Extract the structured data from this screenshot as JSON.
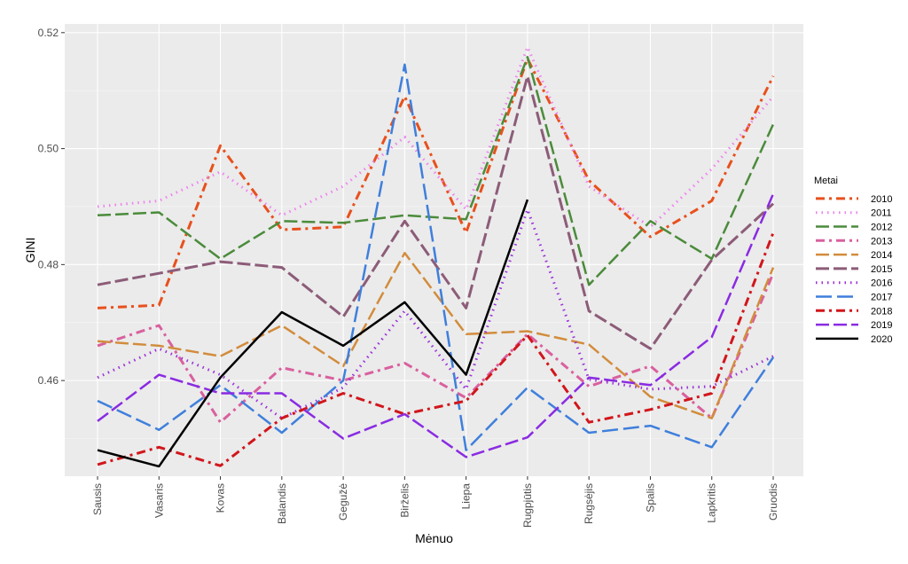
{
  "chart_data": {
    "type": "line",
    "title": "",
    "xlabel": "Mėnuo",
    "ylabel": "GINI",
    "categories": [
      "Sausis",
      "Vasaris",
      "Kovas",
      "Balandis",
      "Gegužė",
      "Birželis",
      "Liepa",
      "Rugpjūtis",
      "Rugsėjis",
      "Spalis",
      "Lapkritis",
      "Gruodis"
    ],
    "ylim": [
      0.4435,
      0.5215
    ],
    "yticks": [
      0.46,
      0.48,
      0.5,
      0.52
    ],
    "ytick_labels": [
      "0.46",
      "0.48",
      "0.50",
      "0.52"
    ],
    "grid": true,
    "legend_title": "Metai",
    "legend_position": "right",
    "series": [
      {
        "name": "2010",
        "color": "#e8501c",
        "dash": "10,5,3,5",
        "width": 3,
        "values": [
          0.4725,
          0.473,
          0.5005,
          0.486,
          0.4865,
          0.509,
          0.4855,
          0.5155,
          0.4945,
          0.4848,
          0.491,
          0.5125
        ]
      },
      {
        "name": "2011",
        "color": "#ee82ee",
        "dash": "1.5,5",
        "width": 3,
        "values": [
          0.49,
          0.491,
          0.496,
          0.4885,
          0.4935,
          0.502,
          0.4895,
          0.5175,
          0.4935,
          0.4865,
          0.4965,
          0.509
        ]
      },
      {
        "name": "2012",
        "color": "#4b8b3b",
        "dash": "15,5",
        "width": 2.5,
        "values": [
          0.4885,
          0.489,
          0.481,
          0.4875,
          0.4872,
          0.4885,
          0.4878,
          0.5158,
          0.4765,
          0.4875,
          0.481,
          0.5042
        ]
      },
      {
        "name": "2013",
        "color": "#d9609e",
        "dash": "10,5,3,5",
        "width": 3,
        "values": [
          0.466,
          0.4695,
          0.4528,
          0.4622,
          0.46,
          0.463,
          0.457,
          0.468,
          0.459,
          0.4625,
          0.4535,
          0.4785
        ]
      },
      {
        "name": "2014",
        "color": "#d28c3c",
        "dash": "15,5",
        "width": 2.5,
        "values": [
          0.4668,
          0.466,
          0.4642,
          0.4695,
          0.4625,
          0.482,
          0.468,
          0.4685,
          0.4662,
          0.4572,
          0.4535,
          0.4795
        ]
      },
      {
        "name": "2015",
        "color": "#8c5c78",
        "dash": "15,5",
        "width": 3,
        "values": [
          0.4765,
          0.4785,
          0.4805,
          0.4795,
          0.471,
          0.4875,
          0.4725,
          0.5125,
          0.472,
          0.4655,
          0.4808,
          0.4905
        ]
      },
      {
        "name": "2016",
        "color": "#9b30d9",
        "dash": "1.5,5",
        "width": 3,
        "values": [
          0.4605,
          0.4655,
          0.461,
          0.4535,
          0.4588,
          0.472,
          0.4585,
          0.4895,
          0.4602,
          0.4585,
          0.459,
          0.4642
        ]
      },
      {
        "name": "2017",
        "color": "#3f7fdc",
        "dash": "18,6",
        "width": 2.5,
        "values": [
          0.4565,
          0.4515,
          0.4592,
          0.451,
          0.46,
          0.5145,
          0.448,
          0.4588,
          0.451,
          0.4522,
          0.4485,
          0.464
        ]
      },
      {
        "name": "2018",
        "color": "#d1161b",
        "dash": "10,5,3,5",
        "width": 3,
        "values": [
          0.4455,
          0.4485,
          0.4453,
          0.4535,
          0.4578,
          0.4542,
          0.4565,
          0.4678,
          0.4528,
          0.455,
          0.4578,
          0.4855
        ]
      },
      {
        "name": "2019",
        "color": "#8a2be2",
        "dash": "15,5",
        "width": 2.5,
        "values": [
          0.453,
          0.461,
          0.4578,
          0.4578,
          0.45,
          0.4542,
          0.4468,
          0.4502,
          0.4605,
          0.4592,
          0.4675,
          0.4922
        ]
      },
      {
        "name": "2020",
        "color": "#000000",
        "dash": "",
        "width": 2.5,
        "values": [
          0.448,
          0.4452,
          0.4605,
          0.4718,
          0.466,
          0.4735,
          0.461,
          0.4912,
          null,
          null,
          null,
          null
        ]
      }
    ]
  }
}
